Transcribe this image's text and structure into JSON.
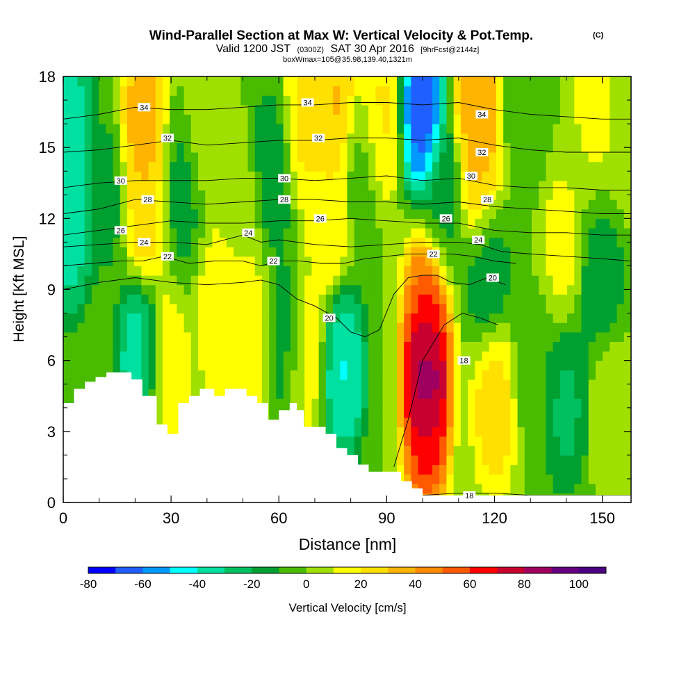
{
  "chart_data": {
    "type": "heatmap",
    "title": "Wind-Parallel Section at Max W: Vertical Velocity & Pot.Temp.",
    "title_mark": "(C)",
    "subtitle_parts": [
      "Valid 1200 JST",
      "(0300Z)",
      "SAT 30 Apr 2016",
      "[9hrFcst@2144z]"
    ],
    "subtitle2": "boxWmax=105@35.98,139.40,1321m",
    "xlabel": "Distance [nm]",
    "ylabel": "Height [Kft MSL]",
    "xlim": [
      0,
      158
    ],
    "ylim": [
      0,
      18
    ],
    "x_ticks": [
      0,
      30,
      60,
      90,
      120,
      150
    ],
    "y_ticks": [
      0,
      3,
      6,
      9,
      12,
      15,
      18
    ],
    "colorbar": {
      "label": "Vertical Velocity [cm/s]",
      "min": -80,
      "max": 110,
      "step": 10,
      "tick_values": [
        -80,
        -60,
        -40,
        -20,
        0,
        20,
        40,
        60,
        80,
        100
      ],
      "colors": [
        "#0000ff",
        "#1f5fff",
        "#0099ff",
        "#00ffff",
        "#00e0a0",
        "#00c060",
        "#00a030",
        "#49bb00",
        "#a0e000",
        "#ffff00",
        "#ffe000",
        "#ffb400",
        "#ff8c00",
        "#ff5a00",
        "#ff0000",
        "#c80030",
        "#9e0060",
        "#660080",
        "#4b0082"
      ]
    },
    "vertical_velocity_cells": [
      {
        "x": 2,
        "z": 11.5,
        "w": -40
      },
      {
        "x": 2,
        "z": 16,
        "w": -40
      },
      {
        "x": 12,
        "z": 13,
        "w": -15
      },
      {
        "x": 22,
        "z": 16,
        "w": 40
      },
      {
        "x": 23,
        "z": 12.5,
        "w": 30
      },
      {
        "x": 21,
        "z": 6,
        "w": -40
      },
      {
        "x": 29,
        "z": 5.5,
        "w": 20
      },
      {
        "x": 33,
        "z": 13,
        "w": -15
      },
      {
        "x": 40,
        "z": 16,
        "w": 10
      },
      {
        "x": 43,
        "z": 8,
        "w": 20
      },
      {
        "x": 50,
        "z": 12,
        "w": 10
      },
      {
        "x": 52,
        "z": 7,
        "w": 20
      },
      {
        "x": 58,
        "z": 14,
        "w": -20
      },
      {
        "x": 62,
        "z": 7,
        "w": -20
      },
      {
        "x": 67,
        "z": 16,
        "w": 25
      },
      {
        "x": 67,
        "z": 6.5,
        "w": 20
      },
      {
        "x": 76,
        "z": 16.5,
        "w": 35
      },
      {
        "x": 74,
        "z": 12,
        "w": 20
      },
      {
        "x": 78,
        "z": 5.5,
        "w": -45
      },
      {
        "x": 83,
        "z": 14,
        "w": -10
      },
      {
        "x": 88,
        "z": 16,
        "w": 25
      },
      {
        "x": 100,
        "z": 16.5,
        "w": -75
      },
      {
        "x": 101,
        "z": 5.5,
        "w": 105
      },
      {
        "x": 101,
        "z": 3,
        "w": 70
      },
      {
        "x": 101,
        "z": 8,
        "w": 60
      },
      {
        "x": 106,
        "z": 13,
        "w": -15
      },
      {
        "x": 115,
        "z": 17,
        "w": 45
      },
      {
        "x": 116,
        "z": 14,
        "w": 35
      },
      {
        "x": 118,
        "z": 10,
        "w": -20
      },
      {
        "x": 120,
        "z": 4,
        "w": 30
      },
      {
        "x": 129,
        "z": 16,
        "w": -10
      },
      {
        "x": 131,
        "z": 6,
        "w": -10
      },
      {
        "x": 138,
        "z": 11,
        "w": 15
      },
      {
        "x": 140,
        "z": 4,
        "w": -25
      },
      {
        "x": 148,
        "z": 17,
        "w": 15
      },
      {
        "x": 150,
        "z": 9,
        "w": -20
      },
      {
        "x": 152,
        "z": 4.5,
        "w": 10
      },
      {
        "x": 156,
        "z": 16,
        "w": 10
      }
    ],
    "theta_contours": [
      {
        "label": "18",
        "x": [
          90,
          100,
          110,
          120,
          130,
          140,
          150,
          158
        ],
        "z": [
          0.6,
          0.3,
          0.4,
          0.4,
          0.3,
          0.3,
          0.3,
          0.3
        ]
      },
      {
        "label": "18",
        "x": [
          92,
          96,
          100,
          106,
          111,
          116,
          121
        ],
        "z": [
          1.5,
          3.5,
          6,
          7.5,
          8,
          7.8,
          7.5
        ]
      },
      {
        "label": "20",
        "x": [
          0,
          10,
          20,
          30,
          40,
          50,
          55,
          60,
          65,
          70,
          76,
          80,
          84,
          88,
          92,
          96,
          100,
          104,
          108,
          113,
          118,
          123
        ],
        "z": [
          9,
          9.3,
          9.5,
          9.3,
          9.2,
          9.3,
          9.4,
          9.2,
          8.6,
          8.3,
          7.8,
          7.2,
          7,
          7.3,
          8.8,
          9.5,
          9.6,
          9.6,
          9.3,
          9.2,
          9.5,
          9.2
        ]
      },
      {
        "label": "22",
        "x": [
          0,
          8,
          16,
          22,
          28,
          35,
          42,
          50,
          55,
          60,
          66,
          72,
          78,
          84,
          90,
          96,
          102,
          108,
          114,
          120,
          126
        ],
        "z": [
          10,
          10.1,
          10.2,
          10.2,
          10.4,
          10.1,
          10.2,
          10.2,
          10,
          10.2,
          10.2,
          10.1,
          10.1,
          10.3,
          10.4,
          10.5,
          10.5,
          10.5,
          10.4,
          10.2,
          10.1
        ]
      },
      {
        "label": "24",
        "x": [
          0,
          10,
          20,
          30,
          40,
          50,
          55,
          60,
          70,
          80,
          90,
          100,
          110,
          116,
          122,
          130,
          140,
          150,
          158
        ],
        "z": [
          10.8,
          10.9,
          11,
          11,
          10.9,
          11.3,
          11,
          11.1,
          10.9,
          10.8,
          10.9,
          11,
          11,
          10.9,
          10.6,
          10.5,
          10.4,
          10.3,
          10.2
        ]
      },
      {
        "label": "26",
        "x": [
          0,
          10,
          20,
          30,
          40,
          50,
          60,
          70,
          80,
          90,
          100,
          110,
          120,
          130,
          140,
          150,
          158
        ],
        "z": [
          11.3,
          11.5,
          11.7,
          11.9,
          11.8,
          11.8,
          11.9,
          11.9,
          12,
          11.9,
          11.8,
          11.8,
          11.5,
          11.4,
          11.4,
          11.3,
          11.3
        ]
      },
      {
        "label": "28",
        "x": [
          0,
          10,
          20,
          30,
          40,
          50,
          60,
          70,
          80,
          90,
          100,
          110,
          120,
          130,
          140,
          150,
          158
        ],
        "z": [
          12.2,
          12.4,
          12.8,
          12.7,
          12.6,
          12.7,
          12.8,
          12.8,
          12.7,
          12.7,
          12.6,
          12.7,
          12.5,
          12.4,
          12.3,
          12.2,
          12.2
        ]
      },
      {
        "label": "30",
        "x": [
          0,
          10,
          20,
          30,
          40,
          50,
          60,
          70,
          80,
          90,
          100,
          110,
          120,
          130,
          140,
          150,
          158
        ],
        "z": [
          13.3,
          13.5,
          13.6,
          13.6,
          13.6,
          13.7,
          13.7,
          13.6,
          13.7,
          13.8,
          13.6,
          13.7,
          13.4,
          13.3,
          13.3,
          13.2,
          13.2
        ]
      },
      {
        "label": "32",
        "x": [
          0,
          10,
          20,
          30,
          40,
          50,
          60,
          70,
          80,
          90,
          100,
          110,
          120,
          130,
          140,
          150,
          158
        ],
        "z": [
          14.8,
          14.9,
          15.1,
          15.3,
          15.1,
          15.2,
          15.3,
          15.3,
          15.4,
          15.4,
          15.3,
          15.4,
          15.1,
          14.9,
          14.8,
          14.8,
          14.8
        ]
      },
      {
        "label": "34",
        "x": [
          0,
          10,
          20,
          30,
          40,
          50,
          60,
          70,
          80,
          90,
          100,
          110,
          120,
          130,
          140,
          150,
          158
        ],
        "z": [
          16.2,
          16.4,
          16.7,
          16.6,
          16.6,
          16.7,
          16.8,
          16.8,
          16.9,
          16.9,
          16.8,
          16.9,
          16.6,
          16.4,
          16.3,
          16.2,
          16.2
        ]
      }
    ],
    "contour_labels": [
      {
        "text": "34",
        "x": 22.5,
        "z": 16.7
      },
      {
        "text": "34",
        "x": 68,
        "z": 16.9
      },
      {
        "text": "34",
        "x": 116.5,
        "z": 16.4
      },
      {
        "text": "32",
        "x": 29,
        "z": 15.4
      },
      {
        "text": "32",
        "x": 71,
        "z": 15.4
      },
      {
        "text": "32",
        "x": 116.5,
        "z": 14.8
      },
      {
        "text": "30",
        "x": 16,
        "z": 13.6
      },
      {
        "text": "30",
        "x": 61.5,
        "z": 13.7
      },
      {
        "text": "30",
        "x": 113.5,
        "z": 13.8
      },
      {
        "text": "28",
        "x": 23.5,
        "z": 12.8
      },
      {
        "text": "28",
        "x": 61.5,
        "z": 12.8
      },
      {
        "text": "28",
        "x": 118,
        "z": 12.8
      },
      {
        "text": "26",
        "x": 16,
        "z": 11.5
      },
      {
        "text": "26",
        "x": 71.5,
        "z": 12
      },
      {
        "text": "26",
        "x": 106.5,
        "z": 12
      },
      {
        "text": "24",
        "x": 22.5,
        "z": 11
      },
      {
        "text": "24",
        "x": 51.5,
        "z": 11.4
      },
      {
        "text": "24",
        "x": 115.5,
        "z": 11.1
      },
      {
        "text": "22",
        "x": 29,
        "z": 10.4
      },
      {
        "text": "22",
        "x": 58.5,
        "z": 10.2
      },
      {
        "text": "22",
        "x": 103,
        "z": 10.5
      },
      {
        "text": "20",
        "x": 119.5,
        "z": 9.5
      },
      {
        "text": "20",
        "x": 74,
        "z": 7.8
      },
      {
        "text": "18",
        "x": 111.5,
        "z": 6
      },
      {
        "text": "18",
        "x": 113,
        "z": 0.3
      }
    ],
    "terrain": {
      "x": [
        0,
        3,
        3,
        6,
        6,
        9,
        9,
        12,
        12,
        15,
        15,
        19,
        19,
        22,
        22,
        25,
        25,
        26,
        26,
        29,
        29,
        32,
        32,
        35,
        35,
        36,
        36,
        38,
        38,
        42,
        42,
        45,
        45,
        48,
        48,
        51,
        51,
        54,
        54,
        57,
        57,
        60,
        60,
        63,
        63,
        65,
        65,
        67,
        67,
        70,
        70,
        73,
        73,
        76,
        76,
        79,
        79,
        82,
        82,
        85,
        85,
        88,
        88,
        94,
        94,
        97,
        97,
        100,
        100,
        158
      ],
      "z": [
        4.2,
        4.2,
        4.8,
        4.8,
        5.1,
        5.1,
        5.3,
        5.3,
        5.5,
        5.5,
        5.5,
        5.5,
        5.2,
        5.2,
        4.5,
        4.5,
        4.5,
        4.5,
        3.3,
        3.3,
        2.9,
        2.9,
        4.2,
        4.2,
        4.5,
        4.5,
        4.5,
        4.5,
        4.8,
        4.8,
        4.5,
        4.5,
        4.8,
        4.8,
        4.8,
        4.8,
        4.5,
        4.5,
        4.2,
        4.2,
        3.5,
        3.5,
        3.9,
        3.9,
        4.2,
        4.2,
        3.9,
        3.9,
        3.2,
        3.2,
        3.2,
        3.2,
        2.9,
        2.9,
        2.3,
        2.3,
        2.0,
        2.0,
        1.6,
        1.6,
        1.3,
        1.3,
        1.3,
        1.3,
        0.9,
        0.9,
        0.6,
        0.6,
        0.3,
        0.3
      ]
    }
  }
}
